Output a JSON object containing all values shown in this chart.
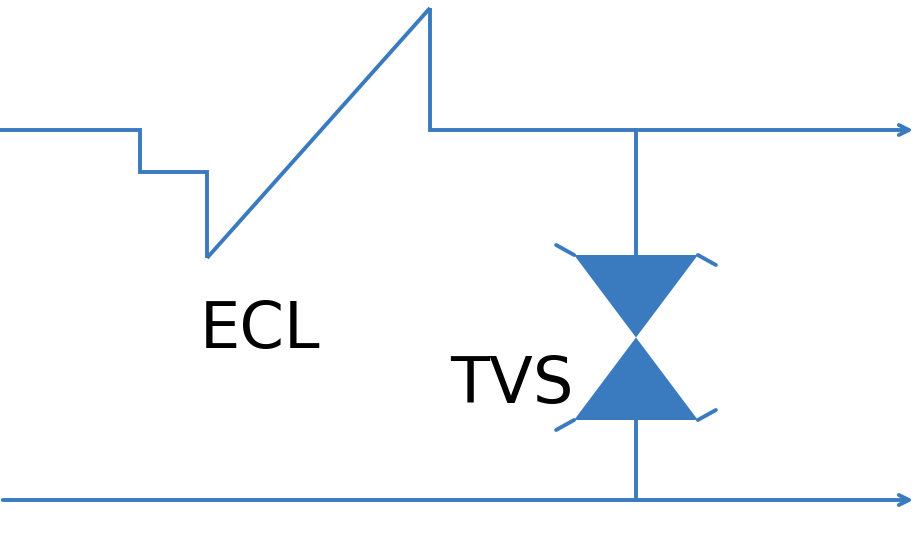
{
  "line_color": "#3a7abf",
  "line_width": 2.8,
  "text_color": "#000000",
  "bg_color": "#ffffff",
  "ecl_label": "ECL",
  "tvs_label": "TVS",
  "ecl_label_fontsize": 46,
  "tvs_label_fontsize": 46,
  "figsize": [
    9.18,
    5.38
  ],
  "dpi": 100,
  "arrow_mutation_scale": 18
}
